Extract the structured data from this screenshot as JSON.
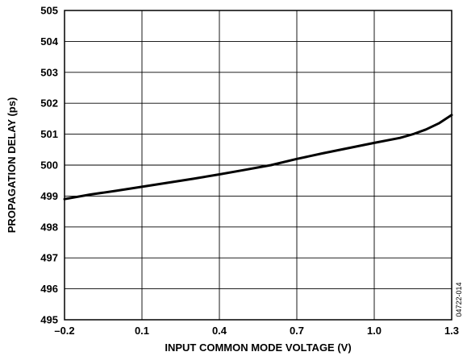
{
  "chart_data": {
    "type": "line",
    "title": "",
    "xlabel": "INPUT COMMON MODE VOLTAGE (V)",
    "ylabel": "PROPAGATION DELAY (ps)",
    "xlim": [
      -0.2,
      1.3
    ],
    "ylim": [
      495,
      505
    ],
    "x_ticks": [
      -0.2,
      0.1,
      0.4,
      0.7,
      1.0,
      1.3
    ],
    "x_tick_labels": [
      "–0.2",
      "0.1",
      "0.4",
      "0.7",
      "1.0",
      "1.3"
    ],
    "y_ticks": [
      495,
      496,
      497,
      498,
      499,
      500,
      501,
      502,
      503,
      504,
      505
    ],
    "y_tick_labels": [
      "495",
      "496",
      "497",
      "498",
      "499",
      "500",
      "501",
      "502",
      "503",
      "504",
      "505"
    ],
    "grid": true,
    "line_color": "#000000",
    "series": [
      {
        "x": [
          -0.2,
          -0.1,
          0.0,
          0.1,
          0.2,
          0.3,
          0.4,
          0.5,
          0.6,
          0.7,
          0.8,
          0.9,
          1.0,
          1.1,
          1.15,
          1.2,
          1.25,
          1.3
        ],
        "y": [
          498.9,
          499.05,
          499.17,
          499.3,
          499.43,
          499.56,
          499.7,
          499.85,
          500.0,
          500.2,
          500.38,
          500.55,
          500.72,
          500.88,
          501.0,
          501.15,
          501.35,
          501.62
        ]
      }
    ],
    "side_code": "04722-014"
  }
}
